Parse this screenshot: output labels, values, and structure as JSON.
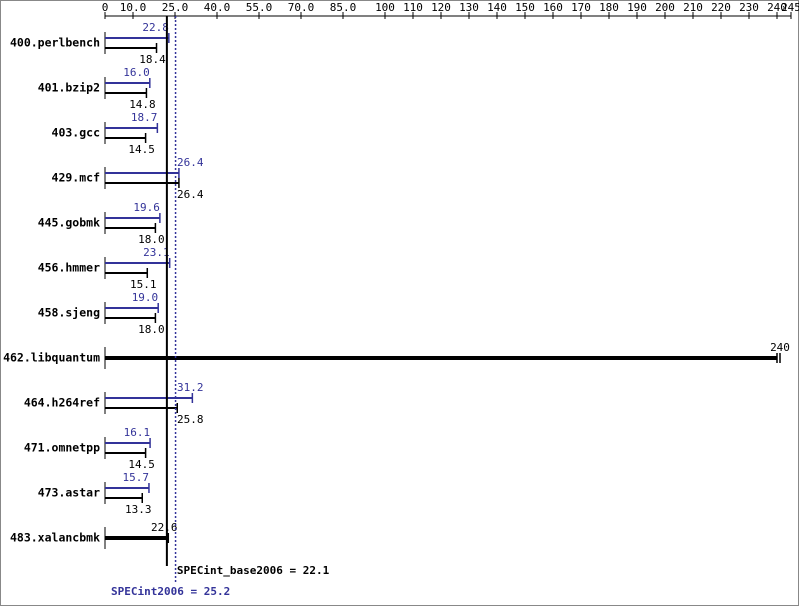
{
  "chart_data": {
    "type": "bar",
    "orientation": "horizontal",
    "categories": [
      "400.perlbench",
      "401.bzip2",
      "403.gcc",
      "429.mcf",
      "445.gobmk",
      "456.hmmer",
      "458.sjeng",
      "462.libquantum",
      "464.h264ref",
      "471.omnetpp",
      "473.astar",
      "483.xalancbmk"
    ],
    "series": [
      {
        "color": "#333399",
        "values": [
          22.8,
          16.0,
          18.7,
          26.4,
          19.6,
          23.1,
          19.0,
          null,
          31.2,
          16.1,
          15.7,
          null
        ],
        "value_labels": [
          "22.8",
          "16.0",
          "18.7",
          "26.4",
          "19.6",
          "23.1",
          "19.0",
          null,
          "31.2",
          "16.1",
          "15.7",
          null
        ]
      },
      {
        "color": "#000000",
        "values": [
          18.4,
          14.8,
          14.5,
          26.4,
          18.0,
          15.1,
          18.0,
          240,
          25.8,
          14.5,
          13.3,
          22.6
        ],
        "value_labels": [
          "18.4",
          "14.8",
          "14.5",
          "26.4",
          "18.0",
          "15.1",
          "18.0",
          "240",
          "25.8",
          "14.5",
          "13.3",
          "22.6"
        ]
      }
    ],
    "xlim": [
      0,
      245
    ],
    "xticks": [
      0,
      {
        "value": 10,
        "label": "10.0"
      },
      {
        "value": 25,
        "label": "25.0"
      },
      {
        "value": 40,
        "label": "40.0"
      },
      {
        "value": 55,
        "label": "55.0"
      },
      {
        "value": 70,
        "label": "70.0"
      },
      {
        "value": 85,
        "label": "85.0"
      },
      100,
      110,
      120,
      130,
      140,
      150,
      160,
      170,
      180,
      190,
      200,
      210,
      220,
      230,
      240,
      245
    ],
    "reference_lines": [
      {
        "text": "SPECint_base2006 = 22.1",
        "value": 22.1,
        "color": "#000000",
        "style": "solid"
      },
      {
        "text": "SPECint2006 = 25.2",
        "value": 25.2,
        "color": "#333399",
        "style": "dotted"
      }
    ]
  }
}
